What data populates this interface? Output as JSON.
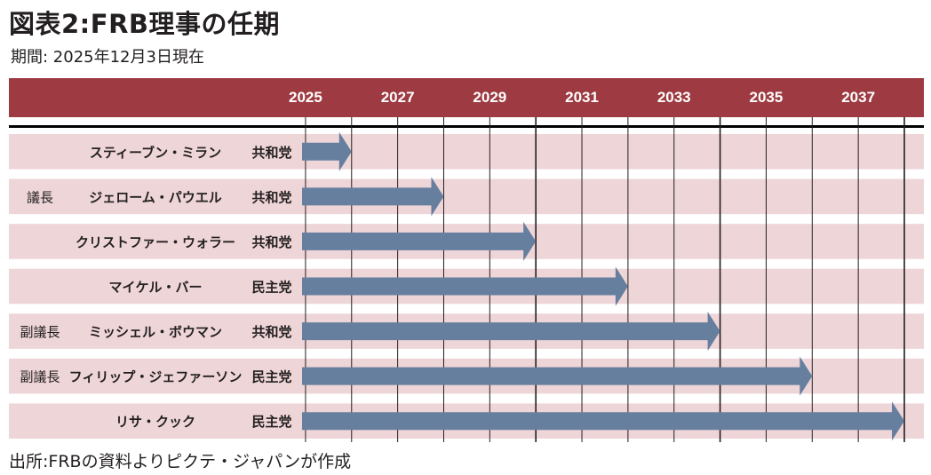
{
  "title": "図表2:FRB理事の任期",
  "subtitle": "期間: 2025年12月3日現在",
  "source": "出所:FRBの資料よりピクテ・ジャパンが作成",
  "colors": {
    "header": "#9e3b42",
    "row_band": "#eed5d8",
    "arrow": "#667f9f"
  },
  "chart_data": {
    "type": "bar",
    "x_ticks": [
      "2025",
      "2027",
      "2029",
      "2031",
      "2033",
      "2035",
      "2037"
    ],
    "xlim": [
      2024.5,
      2038
    ],
    "rows": [
      {
        "role": "",
        "name": "スティーブン・ミラン",
        "party": "共和党",
        "start": 2025.0,
        "end": 2026.0
      },
      {
        "role": "議長",
        "name": "ジェローム・パウエル",
        "party": "共和党",
        "start": 2025.0,
        "end": 2028.0
      },
      {
        "role": "",
        "name": "クリストファー・ウォラー",
        "party": "共和党",
        "start": 2025.0,
        "end": 2030.0
      },
      {
        "role": "",
        "name": "マイケル・バー",
        "party": "民主党",
        "start": 2025.0,
        "end": 2032.0
      },
      {
        "role": "副議長",
        "name": "ミッシェル・ボウマン",
        "party": "共和党",
        "start": 2025.0,
        "end": 2034.0
      },
      {
        "role": "副議長",
        "name": "フィリップ・ジェファーソン",
        "party": "民主党",
        "start": 2025.0,
        "end": 2036.0
      },
      {
        "role": "",
        "name": "リサ・クック",
        "party": "民主党",
        "start": 2025.0,
        "end": 2038.0
      }
    ]
  }
}
